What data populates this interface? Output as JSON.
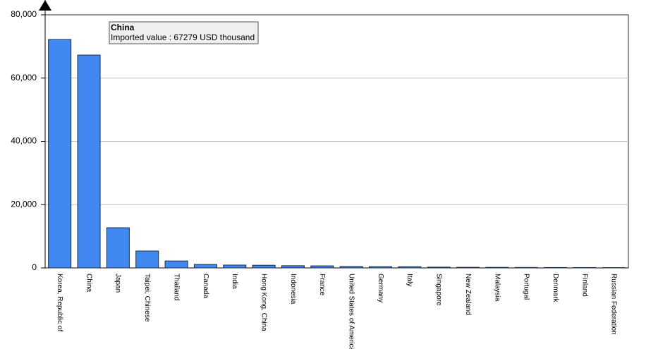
{
  "chart_data": {
    "type": "bar",
    "categories": [
      "Korea, Republic of",
      "China",
      "Japan",
      "Taipei, Chinese",
      "Thailand",
      "Canada",
      "India",
      "Hong Kong, China",
      "Indonesia",
      "France",
      "United States of America",
      "Germany",
      "Italy",
      "Singapore",
      "New Zealand",
      "Malaysia",
      "Portugal",
      "Denmark",
      "Finland",
      "Russian Federation"
    ],
    "values": [
      72200,
      67279,
      12700,
      5350,
      2200,
      1100,
      900,
      850,
      700,
      650,
      450,
      400,
      380,
      250,
      200,
      180,
      150,
      130,
      120,
      100
    ],
    "color": "#4189f0",
    "ylim": [
      0,
      80000
    ],
    "yticks": [
      {
        "value": 0,
        "label": "0"
      },
      {
        "value": 20000,
        "label": "20,000"
      },
      {
        "value": 40000,
        "label": "40,000"
      },
      {
        "value": 60000,
        "label": "60,000"
      },
      {
        "value": 80000,
        "label": "80,000"
      }
    ],
    "grid": true,
    "tooltip": {
      "title": "China",
      "text": "Imported value : 67279 USD thousand"
    }
  }
}
